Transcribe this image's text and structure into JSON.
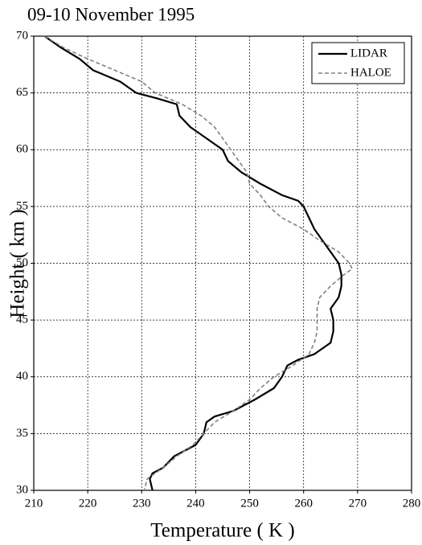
{
  "chart_data": {
    "type": "line",
    "title": "09-10 November 1995",
    "xlabel": "Temperature ( K )",
    "ylabel": "Height ( km )",
    "xlim": [
      210,
      280
    ],
    "xticks": [
      210,
      220,
      230,
      240,
      250,
      260,
      270,
      280
    ],
    "ylim": [
      30,
      70
    ],
    "yticks": [
      30,
      35,
      40,
      45,
      50,
      55,
      60,
      65,
      70
    ],
    "grid": true,
    "legend": "upper right",
    "series": [
      {
        "name": "LIDAR",
        "color": "#000000",
        "dash": false,
        "x": [
          212,
          215,
          218.5,
          221,
          226,
          229,
          233,
          236.5,
          237,
          239,
          242,
          245,
          246,
          248.5,
          252,
          256,
          259,
          260,
          261,
          262,
          263.5,
          265,
          266.5,
          267,
          267,
          266.5,
          265,
          265.5,
          265.5,
          265,
          262,
          259,
          257,
          256,
          254.5,
          251,
          247,
          243.5,
          242,
          241.5,
          240,
          236,
          234,
          232,
          231.5,
          232
        ],
        "y": [
          70,
          69,
          68,
          67,
          66,
          65,
          64.5,
          64,
          63,
          62,
          61,
          60,
          59,
          58,
          57,
          56,
          55.5,
          55,
          54,
          53,
          52,
          51,
          50,
          49,
          48,
          47,
          46,
          45,
          44,
          43,
          42,
          41.5,
          41,
          40,
          39,
          38,
          37,
          36.5,
          36,
          35,
          34,
          33,
          32,
          31.5,
          31,
          30
        ]
      },
      {
        "name": "HALOE",
        "color": "#808080",
        "dash": true,
        "x": [
          212,
          215.5,
          220,
          225,
          230,
          232.5,
          237.5,
          241,
          243.5,
          245,
          246.5,
          248,
          249.5,
          250,
          252,
          253.5,
          256,
          260,
          263,
          266.5,
          268.5,
          269,
          267.5,
          265,
          263,
          262.5,
          262.5,
          262.5,
          262,
          261,
          258,
          254.5,
          252,
          250,
          247,
          243.5,
          241.5,
          239.5,
          236.5,
          234,
          231,
          230.5
        ],
        "y": [
          70,
          69,
          68,
          67,
          66,
          65,
          64,
          63,
          62,
          61,
          60,
          59,
          58,
          57,
          56,
          55,
          54,
          53,
          52,
          51,
          50,
          49.5,
          49,
          48,
          47,
          46,
          45,
          44,
          43,
          42,
          41,
          40,
          39,
          38,
          37,
          36,
          35,
          34,
          33,
          32,
          31,
          30
        ]
      }
    ]
  }
}
